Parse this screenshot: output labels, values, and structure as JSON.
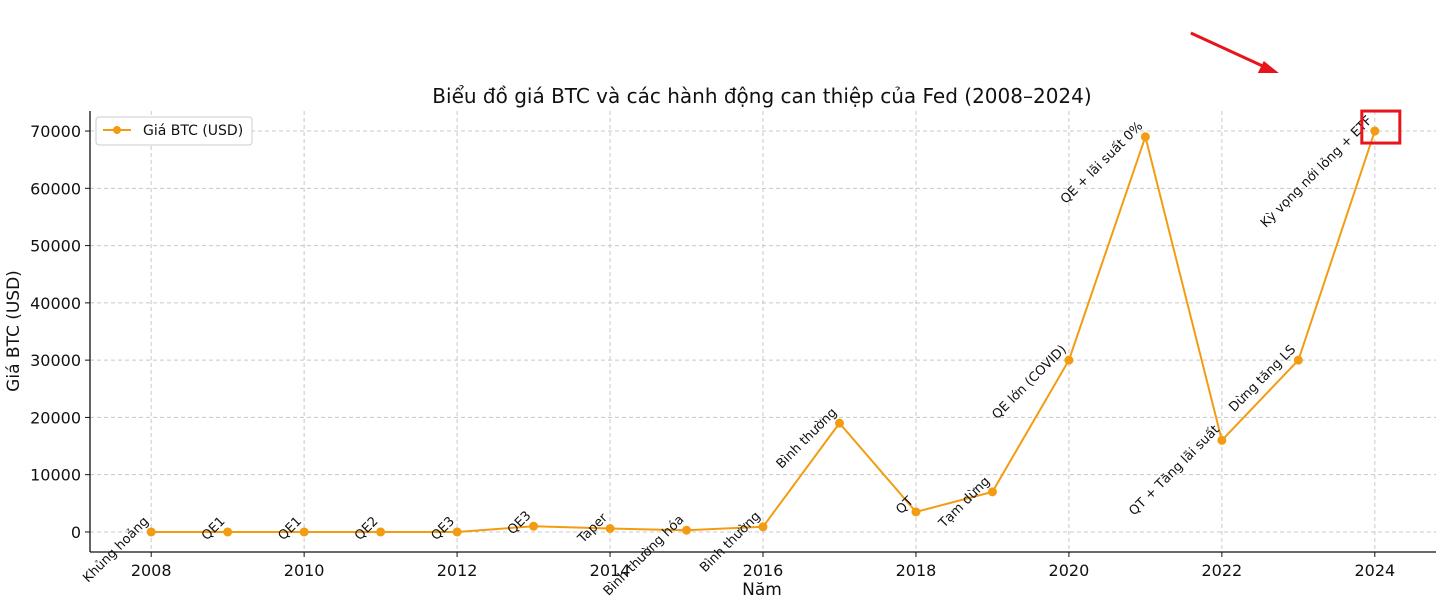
{
  "chart_data": {
    "type": "line",
    "title": "Biểu đồ giá BTC và các hành động can thiệp của Fed (2008–2024)",
    "xlabel": "Năm",
    "ylabel": "Giá BTC (USD)",
    "xlim": [
      2007.2,
      2024.8
    ],
    "ylim": [
      -3500,
      73500
    ],
    "x_ticks": [
      2008,
      2010,
      2012,
      2014,
      2016,
      2018,
      2020,
      2022,
      2024
    ],
    "y_ticks": [
      0,
      10000,
      20000,
      30000,
      40000,
      50000,
      60000,
      70000
    ],
    "grid": true,
    "legend_position": "top-left",
    "series": [
      {
        "name": "Giá BTC (USD)",
        "color": "#f39c12",
        "x": [
          2008,
          2009,
          2010,
          2011,
          2012,
          2013,
          2014,
          2015,
          2016,
          2017,
          2018,
          2019,
          2020,
          2021,
          2022,
          2023,
          2024
        ],
        "y": [
          0,
          0,
          0,
          0,
          0,
          1000,
          600,
          300,
          900,
          19000,
          3500,
          7000,
          30000,
          69000,
          16000,
          30000,
          70000
        ]
      }
    ],
    "annotations": [
      {
        "text": "Khủng hoảng",
        "x": 2008,
        "y": 0
      },
      {
        "text": "QE1",
        "x": 2009,
        "y": 0
      },
      {
        "text": "QE1",
        "x": 2010,
        "y": 0
      },
      {
        "text": "QE2",
        "x": 2011,
        "y": 0
      },
      {
        "text": "QE3",
        "x": 2012,
        "y": 0
      },
      {
        "text": "QE3",
        "x": 2013,
        "y": 1000
      },
      {
        "text": "Taper",
        "x": 2014,
        "y": 600
      },
      {
        "text": "Bình thường hóa",
        "x": 2015,
        "y": 300
      },
      {
        "text": "Bình thường",
        "x": 2016,
        "y": 900
      },
      {
        "text": "Bình thường",
        "x": 2017,
        "y": 19000
      },
      {
        "text": "QT",
        "x": 2018,
        "y": 3500
      },
      {
        "text": "Tạm dừng",
        "x": 2019,
        "y": 7000
      },
      {
        "text": "QE lớn (COVID)",
        "x": 2020,
        "y": 30000
      },
      {
        "text": "QE + lãi suất 0%",
        "x": 2021,
        "y": 69000
      },
      {
        "text": "QT + Tăng lãi suất",
        "x": 2022,
        "y": 16000
      },
      {
        "text": "Dừng tăng LS",
        "x": 2023,
        "y": 30000
      },
      {
        "text": "Kỳ vọng nới lỏng + ETF",
        "x": 2024,
        "y": 70000
      }
    ],
    "highlight": {
      "x": 2024,
      "y": 70000,
      "color": "#e8141c",
      "arrow": true
    }
  }
}
